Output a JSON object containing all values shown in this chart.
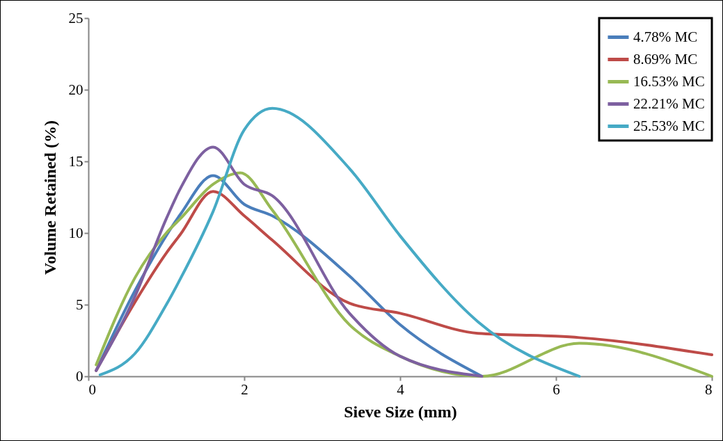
{
  "chart_data": {
    "type": "line",
    "xlabel": "Sieve Size (mm)",
    "ylabel": "Volume Retained (%)",
    "xlim": [
      0,
      8
    ],
    "xticks": [
      0,
      2,
      4,
      6,
      8
    ],
    "ylim": [
      0,
      25
    ],
    "yticks": [
      0,
      5,
      10,
      15,
      20,
      25
    ],
    "grid": false,
    "legend": "top right",
    "marker": "none",
    "line_style": "solid",
    "series": [
      {
        "name": "4.78% MC",
        "color": "#4a7ebb",
        "x": [
          0.1,
          0.6,
          1.18,
          1.6,
          2.0,
          2.36,
          3.35,
          4.0,
          5.05
        ],
        "values": [
          0.4,
          6.0,
          11.3,
          14,
          12,
          11.2,
          7.0,
          3.6,
          0
        ]
      },
      {
        "name": "8.69% MC",
        "color": "#be4b48",
        "x": [
          0.1,
          0.6,
          1.0,
          1.18,
          1.6,
          2.0,
          2.36,
          3.35,
          4.0,
          5.0,
          6.0,
          6.3,
          8.0
        ],
        "values": [
          0.4,
          5.2,
          8.6,
          9.9,
          12.9,
          11.2,
          9.5,
          5.1,
          4.4,
          3.0,
          2.8,
          2.7,
          1.5
        ]
      },
      {
        "name": "16.53% MC",
        "color": "#98b954",
        "x": [
          0.1,
          0.6,
          1.0,
          1.18,
          1.6,
          1.95,
          2.36,
          3.35,
          4.0,
          5.05,
          6.3,
          8.0
        ],
        "values": [
          0.8,
          6.9,
          10,
          11.0,
          13.4,
          14.2,
          11.6,
          3.6,
          1.4,
          0,
          2.3,
          0
        ]
      },
      {
        "name": "22.21% MC",
        "color": "#7d60a0",
        "x": [
          0.1,
          0.6,
          1.0,
          1.18,
          1.6,
          2.0,
          2.36,
          3.35,
          4.0,
          5.05
        ],
        "values": [
          0.4,
          5.6,
          11.0,
          13.1,
          16.0,
          13.4,
          12.6,
          4.4,
          1.4,
          0
        ]
      },
      {
        "name": "25.53% MC",
        "color": "#46aac5",
        "x": [
          0.15,
          0.6,
          1.0,
          1.18,
          1.6,
          2.0,
          2.36,
          3.35,
          4.0,
          5.0,
          6.3
        ],
        "values": [
          0.1,
          1.6,
          5.0,
          6.8,
          11.5,
          17.2,
          18.7,
          14.5,
          9.8,
          3.8,
          0
        ]
      }
    ]
  }
}
